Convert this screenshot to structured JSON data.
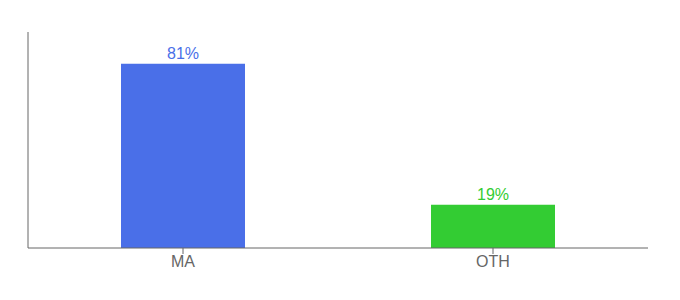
{
  "chart_data": {
    "type": "bar",
    "categories": [
      "MA",
      "OTH"
    ],
    "values": [
      81,
      19
    ],
    "value_labels": [
      "81%",
      "19%"
    ],
    "colors": [
      "#4a6fe8",
      "#33cc33"
    ],
    "ylim": [
      0,
      95
    ],
    "data_labels": true,
    "tick_labels": "x",
    "grid": false
  }
}
